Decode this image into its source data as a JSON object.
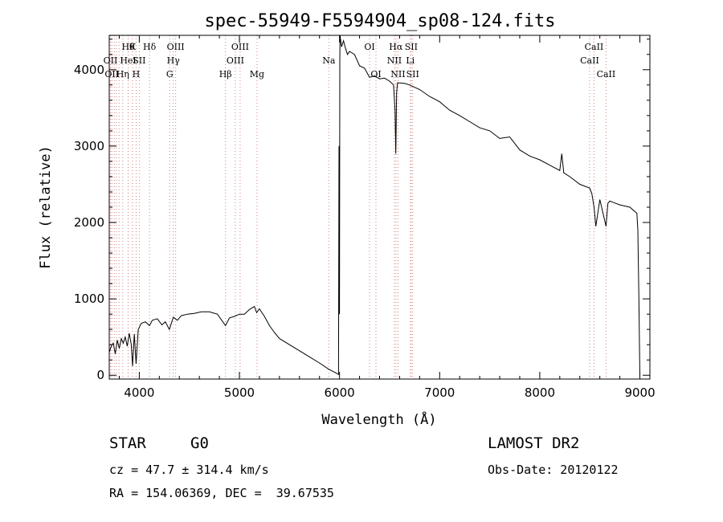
{
  "chart_data": {
    "type": "line",
    "title": "spec-55949-F5594904_sp08-124.fits",
    "xlabel": "Wavelength (Å)",
    "ylabel": "Flux (relative)",
    "xlim": [
      3700,
      9100
    ],
    "ylim": [
      -50,
      4450
    ],
    "xticks": [
      4000,
      5000,
      6000,
      7000,
      8000,
      9000
    ],
    "yticks": [
      0,
      1000,
      2000,
      3000,
      4000
    ],
    "grid": false,
    "series": [
      {
        "x": [
          3700,
          3720,
          3740,
          3760,
          3780,
          3800,
          3820,
          3840,
          3860,
          3880,
          3900,
          3920,
          3933,
          3950,
          3968,
          3990,
          4020,
          4060,
          4102,
          4130,
          4180,
          4226,
          4260,
          4300,
          4340,
          4380,
          4420,
          4480,
          4550,
          4620,
          4700,
          4780,
          4861,
          4900,
          4950,
          5000,
          5050,
          5100,
          5150,
          5172,
          5200,
          5250,
          5300,
          5350,
          5400,
          5500,
          5600,
          5700,
          5800,
          5890,
          5950,
          5990,
          5995,
          6000,
          6003,
          6005,
          6020,
          6040,
          6060,
          6080,
          6100,
          6150,
          6200,
          6250,
          6300,
          6350,
          6400,
          6450,
          6500,
          6540,
          6555,
          6562,
          6570,
          6580,
          6650,
          6700,
          6800,
          6900,
          7000,
          7100,
          7200,
          7300,
          7400,
          7500,
          7600,
          7700,
          7800,
          7900,
          8000,
          8100,
          8200,
          8220,
          8240,
          8300,
          8400,
          8498,
          8520,
          8542,
          8560,
          8600,
          8662,
          8680,
          8700,
          8800,
          8900,
          8970,
          8980,
          8990,
          9000
        ],
        "values": [
          300,
          380,
          420,
          280,
          460,
          350,
          480,
          420,
          500,
          380,
          550,
          400,
          120,
          540,
          150,
          600,
          680,
          700,
          650,
          720,
          740,
          660,
          700,
          600,
          760,
          720,
          780,
          800,
          810,
          830,
          830,
          800,
          650,
          750,
          770,
          800,
          800,
          860,
          900,
          820,
          870,
          770,
          650,
          560,
          480,
          400,
          320,
          240,
          160,
          80,
          40,
          10,
          3000,
          800,
          4100,
          4450,
          4300,
          4380,
          4280,
          4200,
          4240,
          4200,
          4050,
          4020,
          3900,
          3920,
          3880,
          3890,
          3850,
          3800,
          3450,
          2900,
          3700,
          3830,
          3820,
          3800,
          3740,
          3650,
          3580,
          3470,
          3400,
          3320,
          3240,
          3200,
          3100,
          3120,
          2950,
          2870,
          2820,
          2750,
          2680,
          2900,
          2650,
          2600,
          2500,
          2450,
          2380,
          2200,
          1950,
          2300,
          1950,
          2250,
          2280,
          2230,
          2200,
          2120,
          1900,
          1000,
          0
        ]
      }
    ],
    "line_markers": [
      {
        "w": 3712,
        "label": "OII",
        "row": 2
      },
      {
        "w": 3726,
        "label": "OII",
        "row": 3
      },
      {
        "w": 3750,
        "label": "",
        "row": 0
      },
      {
        "w": 3771,
        "label": "",
        "row": 0
      },
      {
        "w": 3798,
        "label": "",
        "row": 0
      },
      {
        "w": 3835,
        "label": "Hη",
        "row": 3
      },
      {
        "w": 3889,
        "label": "Hθ",
        "row": 1
      },
      {
        "w": 3889,
        "label": "HeI",
        "row": 2
      },
      {
        "w": 3933,
        "label": "K",
        "row": 1
      },
      {
        "w": 3968,
        "label": "H",
        "row": 3
      },
      {
        "w": 4000,
        "label": "SII",
        "row": 2
      },
      {
        "w": 4102,
        "label": "Hδ",
        "row": 1
      },
      {
        "w": 4304,
        "label": "G",
        "row": 3
      },
      {
        "w": 4340,
        "label": "Hγ",
        "row": 2
      },
      {
        "w": 4363,
        "label": "OIII",
        "row": 1
      },
      {
        "w": 4861,
        "label": "Hβ",
        "row": 3
      },
      {
        "w": 4959,
        "label": "OIII",
        "row": 2
      },
      {
        "w": 5007,
        "label": "OIII",
        "row": 1
      },
      {
        "w": 5176,
        "label": "Mg",
        "row": 3
      },
      {
        "w": 5893,
        "label": "Na",
        "row": 2
      },
      {
        "w": 6300,
        "label": "OI",
        "row": 1
      },
      {
        "w": 6364,
        "label": "OI",
        "row": 3
      },
      {
        "w": 6548,
        "label": "NII",
        "row": 2
      },
      {
        "w": 6563,
        "label": "Hα",
        "row": 1
      },
      {
        "w": 6584,
        "label": "NII",
        "row": 3
      },
      {
        "w": 6707,
        "label": "Li",
        "row": 2
      },
      {
        "w": 6716,
        "label": "SII",
        "row": 1
      },
      {
        "w": 6731,
        "label": "SII",
        "row": 3
      },
      {
        "w": 8498,
        "label": "CaII",
        "row": 2
      },
      {
        "w": 8542,
        "label": "CaII",
        "row": 1
      },
      {
        "w": 8662,
        "label": "CaII",
        "row": 3
      }
    ]
  },
  "info": {
    "class_label": "STAR",
    "subclass": "G0",
    "survey": "LAMOST DR2",
    "redshift_line": "cz = 47.7 ± 314.4 km/s",
    "obs_date_line": "Obs-Date: 20120122",
    "coords_line": "RA = 154.06369, DEC =  39.67535"
  }
}
